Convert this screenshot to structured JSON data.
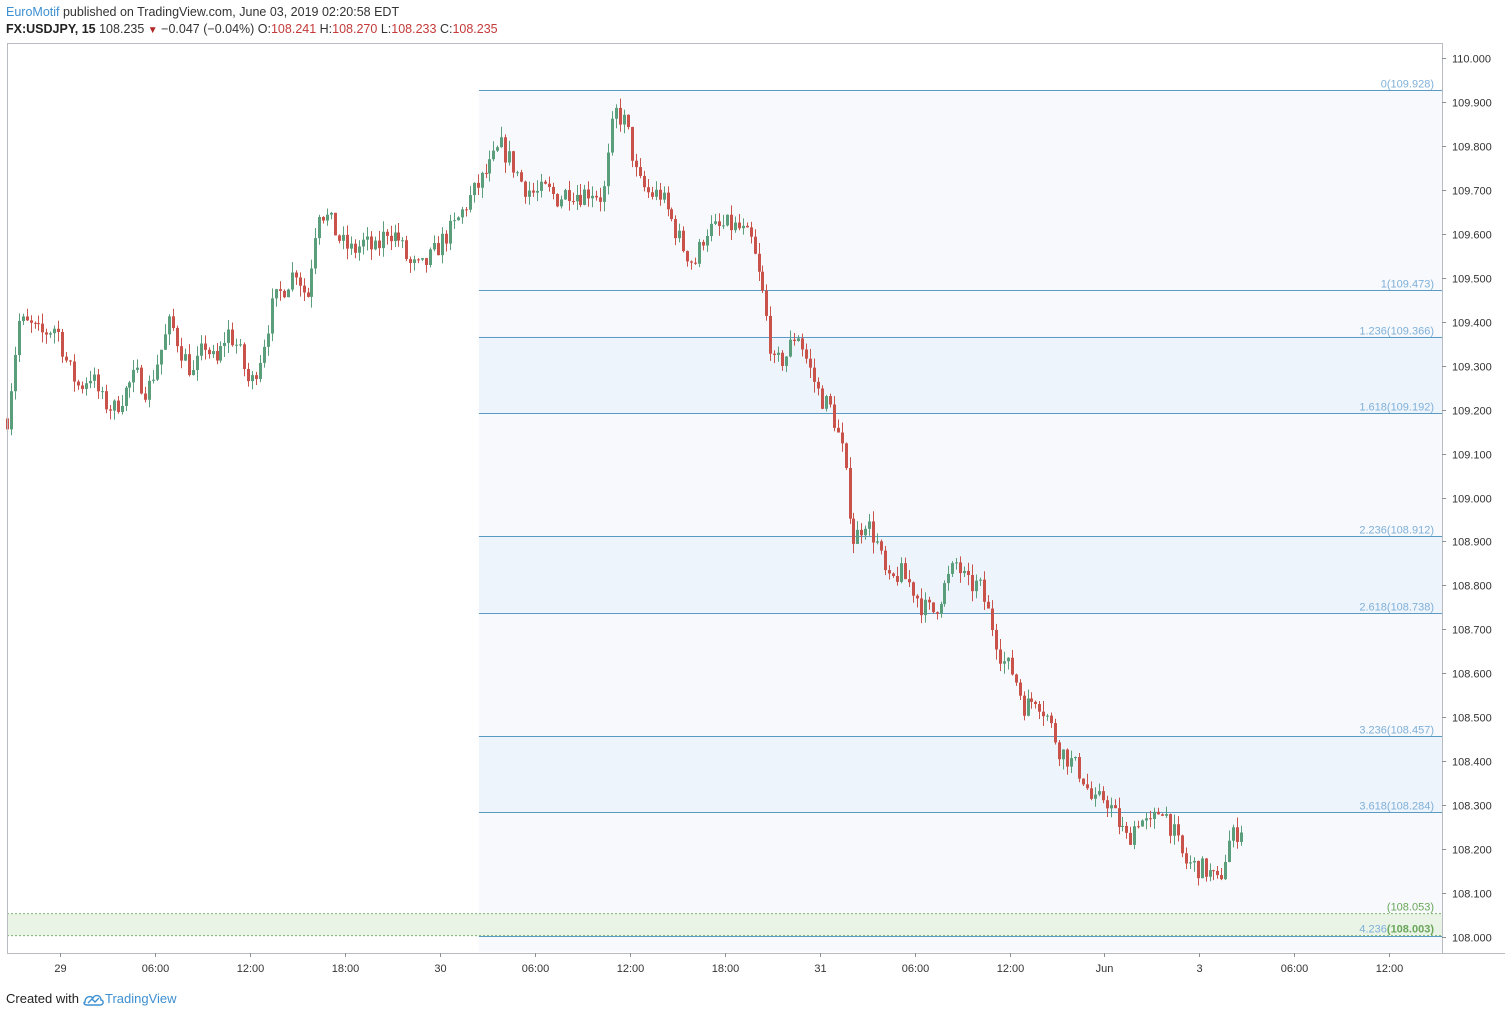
{
  "header": {
    "author": "EuroMotif",
    "published": " published on TradingView.com, June 03, 2019 02:20:58 EDT",
    "symbol": "FX:USDJPY, 15",
    "last": "108.235",
    "change": "−0.047 (−0.04%)",
    "o_label": "O:",
    "o_value": "108.241",
    "h_label": "H:",
    "h_value": "108.270",
    "l_label": "L:",
    "l_value": "108.233",
    "c_label": "C:",
    "c_value": "108.235"
  },
  "footer": {
    "created_with": "Created with",
    "brand": "TradingView"
  },
  "colors": {
    "up": "#5b9e7c",
    "down": "#c9524a",
    "fib_line": "#5a9bc4",
    "fib_label": "#7fb0d9",
    "fib_zone": "#eef4fb",
    "fib_bg": "#f7f9fc",
    "green_zone": "#e9f3e6",
    "green_label": "#6aa75a"
  },
  "chart_data": {
    "type": "candlestick",
    "title": "FX:USDJPY, 15",
    "ylim": [
      108.0,
      110.0
    ],
    "y_ticks": [
      "110.000",
      "109.900",
      "109.800",
      "109.700",
      "109.600",
      "109.500",
      "109.400",
      "109.300",
      "109.200",
      "109.100",
      "109.000",
      "108.900",
      "108.800",
      "108.700",
      "108.600",
      "108.500",
      "108.400",
      "108.300",
      "108.200",
      "108.100",
      "108.000"
    ],
    "x_ticks": [
      {
        "label": "29",
        "t": 0.0
      },
      {
        "label": "06:00",
        "t": 0.25
      },
      {
        "label": "12:00",
        "t": 0.5
      },
      {
        "label": "18:00",
        "t": 0.75
      },
      {
        "label": "30",
        "t": 1.0
      },
      {
        "label": "06:00",
        "t": 1.25
      },
      {
        "label": "12:00",
        "t": 1.5
      },
      {
        "label": "18:00",
        "t": 1.75
      },
      {
        "label": "31",
        "t": 2.0
      },
      {
        "label": "06:00",
        "t": 2.25
      },
      {
        "label": "12:00",
        "t": 2.5
      },
      {
        "label": "Jun",
        "t": 2.75
      },
      {
        "label": "3",
        "t": 3.0
      },
      {
        "label": "06:00",
        "t": 3.25
      },
      {
        "label": "12:00",
        "t": 3.5
      }
    ],
    "x_range": [
      -0.14,
      3.58
    ],
    "path": [
      [
        -0.14,
        109.18
      ],
      [
        -0.11,
        109.4
      ],
      [
        -0.08,
        109.39
      ],
      [
        -0.05,
        109.37
      ],
      [
        -0.01,
        109.39
      ],
      [
        0.02,
        109.3
      ],
      [
        0.05,
        109.25
      ],
      [
        0.08,
        109.28
      ],
      [
        0.11,
        109.22
      ],
      [
        0.14,
        109.2
      ],
      [
        0.17,
        109.24
      ],
      [
        0.2,
        109.28
      ],
      [
        0.23,
        109.24
      ],
      [
        0.26,
        109.32
      ],
      [
        0.29,
        109.4
      ],
      [
        0.32,
        109.33
      ],
      [
        0.35,
        109.28
      ],
      [
        0.38,
        109.35
      ],
      [
        0.41,
        109.3
      ],
      [
        0.44,
        109.38
      ],
      [
        0.47,
        109.34
      ],
      [
        0.5,
        109.25
      ],
      [
        0.53,
        109.33
      ],
      [
        0.56,
        109.44
      ],
      [
        0.59,
        109.48
      ],
      [
        0.62,
        109.52
      ],
      [
        0.65,
        109.45
      ],
      [
        0.68,
        109.66
      ],
      [
        0.71,
        109.63
      ],
      [
        0.74,
        109.58
      ],
      [
        0.77,
        109.56
      ],
      [
        0.8,
        109.58
      ],
      [
        0.83,
        109.56
      ],
      [
        0.86,
        109.61
      ],
      [
        0.89,
        109.59
      ],
      [
        0.92,
        109.53
      ],
      [
        0.95,
        109.52
      ],
      [
        0.98,
        109.55
      ],
      [
        1.01,
        109.59
      ],
      [
        1.04,
        109.62
      ],
      [
        1.07,
        109.67
      ],
      [
        1.1,
        109.71
      ],
      [
        1.13,
        109.75
      ],
      [
        1.16,
        109.8
      ],
      [
        1.19,
        109.76
      ],
      [
        1.22,
        109.71
      ],
      [
        1.25,
        109.69
      ],
      [
        1.28,
        109.7
      ],
      [
        1.31,
        109.68
      ],
      [
        1.34,
        109.7
      ],
      [
        1.37,
        109.69
      ],
      [
        1.4,
        109.7
      ],
      [
        1.43,
        109.68
      ],
      [
        1.46,
        109.88
      ],
      [
        1.49,
        109.85
      ],
      [
        1.52,
        109.72
      ],
      [
        1.55,
        109.69
      ],
      [
        1.58,
        109.69
      ],
      [
        1.61,
        109.63
      ],
      [
        1.64,
        109.57
      ],
      [
        1.67,
        109.53
      ],
      [
        1.7,
        109.61
      ],
      [
        1.73,
        109.61
      ],
      [
        1.76,
        109.62
      ],
      [
        1.79,
        109.61
      ],
      [
        1.82,
        109.58
      ],
      [
        1.85,
        109.46
      ],
      [
        1.88,
        109.3
      ],
      [
        1.91,
        109.32
      ],
      [
        1.94,
        109.38
      ],
      [
        1.97,
        109.3
      ],
      [
        2.0,
        109.23
      ],
      [
        2.03,
        109.2
      ],
      [
        2.06,
        109.1
      ],
      [
        2.09,
        108.9
      ],
      [
        2.12,
        108.95
      ],
      [
        2.15,
        108.9
      ],
      [
        2.18,
        108.8
      ],
      [
        2.21,
        108.83
      ],
      [
        2.24,
        108.8
      ],
      [
        2.27,
        108.75
      ],
      [
        2.3,
        108.74
      ],
      [
        2.33,
        108.8
      ],
      [
        2.36,
        108.85
      ],
      [
        2.39,
        108.8
      ],
      [
        2.42,
        108.8
      ],
      [
        2.45,
        108.72
      ],
      [
        2.48,
        108.63
      ],
      [
        2.51,
        108.6
      ],
      [
        2.54,
        108.52
      ],
      [
        2.57,
        108.55
      ],
      [
        2.6,
        108.5
      ],
      [
        2.63,
        108.43
      ],
      [
        2.66,
        108.4
      ],
      [
        2.69,
        108.37
      ],
      [
        2.72,
        108.3
      ],
      [
        2.75,
        108.32
      ],
      [
        2.78,
        108.27
      ],
      [
        2.81,
        108.22
      ],
      [
        2.84,
        108.27
      ],
      [
        2.87,
        108.25
      ],
      [
        2.9,
        108.3
      ],
      [
        2.93,
        108.24
      ],
      [
        2.96,
        108.17
      ],
      [
        2.99,
        108.16
      ],
      [
        3.02,
        108.15
      ],
      [
        3.05,
        108.12
      ],
      [
        3.08,
        108.22
      ],
      [
        3.11,
        108.25
      ]
    ],
    "fibonacci": [
      {
        "label": "0(109.928)",
        "value": 109.928,
        "zone": false
      },
      {
        "label": "1(109.473)",
        "value": 109.473,
        "zone": false
      },
      {
        "label": "1.236(109.366)",
        "value": 109.366,
        "zone": true
      },
      {
        "label": "1.618(109.192)",
        "value": 109.192,
        "zone": false
      },
      {
        "label": "2.236(108.912)",
        "value": 108.912,
        "zone": true
      },
      {
        "label": "2.618(108.738)",
        "value": 108.738,
        "zone": false
      },
      {
        "label": "3.236(108.457)",
        "value": 108.457,
        "zone": true
      },
      {
        "label": "3.618(108.284)",
        "value": 108.284,
        "zone": false
      },
      {
        "label": "4.236",
        "value": 108.003,
        "zone": false
      }
    ],
    "fib_start_t": 1.103,
    "support_zone": {
      "top": 108.053,
      "bottom": 108.003,
      "top_label": "(108.053)",
      "bottom_label": "(108.003)"
    }
  }
}
